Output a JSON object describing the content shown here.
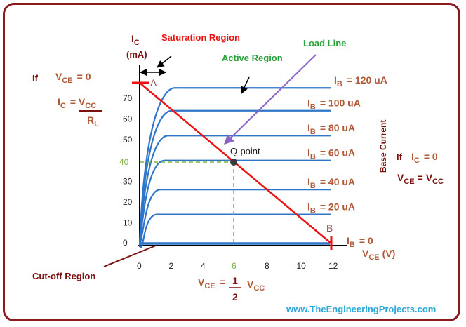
{
  "axes": {
    "y_label_main": "I",
    "y_label_sub": "C",
    "y_unit": "(mA)",
    "x_label_main": "V",
    "x_label_sub": "CE",
    "x_unit": "(V)",
    "x_ticks": [
      "0",
      "2",
      "4",
      "6",
      "8",
      "10",
      "12"
    ],
    "y_ticks": [
      "0",
      "10",
      "20",
      "30",
      "40",
      "50",
      "60",
      "70"
    ]
  },
  "curves": [
    {
      "label_main": "I",
      "label_sub": "B",
      "label_value": "=  120 uA",
      "ic_ma": 75
    },
    {
      "label_main": "I",
      "label_sub": "B",
      "label_value": "=  100 uA",
      "ic_ma": 64
    },
    {
      "label_main": "I",
      "label_sub": "B",
      "label_value": "=  80   uA",
      "ic_ma": 52
    },
    {
      "label_main": "I",
      "label_sub": "B",
      "label_value": "=  60   uA",
      "ic_ma": 40
    },
    {
      "label_main": "I",
      "label_sub": "B",
      "label_value": "=  40   uA",
      "ic_ma": 26
    },
    {
      "label_main": "I",
      "label_sub": "B",
      "label_value": "=  20   uA",
      "ic_ma": 14
    },
    {
      "label_main": "I",
      "label_sub": "B",
      "label_value": "=  0",
      "ic_ma": 0
    }
  ],
  "annotations": {
    "saturation_region": "Saturation Region",
    "active_region": "Active Region",
    "load_line": "Load Line",
    "cutoff_region": "Cut-off Region",
    "base_current": "Base Current",
    "point_a": "A",
    "point_b": "B",
    "q_point": "Q-point",
    "q_ic": "40",
    "q_vce": "6"
  },
  "left_condition": {
    "if_label": "If",
    "cond_main": "V",
    "cond_sub": "CE",
    "cond_value": "=  0",
    "result_main": "I",
    "result_sub": "C",
    "result_eq": "= V",
    "result_eq_sub": "CC",
    "denominator_main": "R",
    "denominator_sub": "L"
  },
  "right_condition": {
    "if_label": "If",
    "cond_main": "I",
    "cond_sub": "C",
    "cond_value": "=  0",
    "result_main": "V",
    "result_sub": "CE",
    "result_eq": "= V",
    "result_eq_sub": "CC"
  },
  "bottom_formula": {
    "lhs_main": "V",
    "lhs_sub": "CE",
    "equals": "=",
    "numerator": "1",
    "denominator": "2",
    "rhs_main": "V",
    "rhs_sub": "CC"
  },
  "footer": {
    "url": "www.TheEngineeringProjects.com"
  },
  "colors": {
    "frame": "#8b1a1f",
    "curves": "#2f76c9",
    "load_line": "#ee1111",
    "q_guides": "#7cb342",
    "pointer": "#8a63c9"
  }
}
